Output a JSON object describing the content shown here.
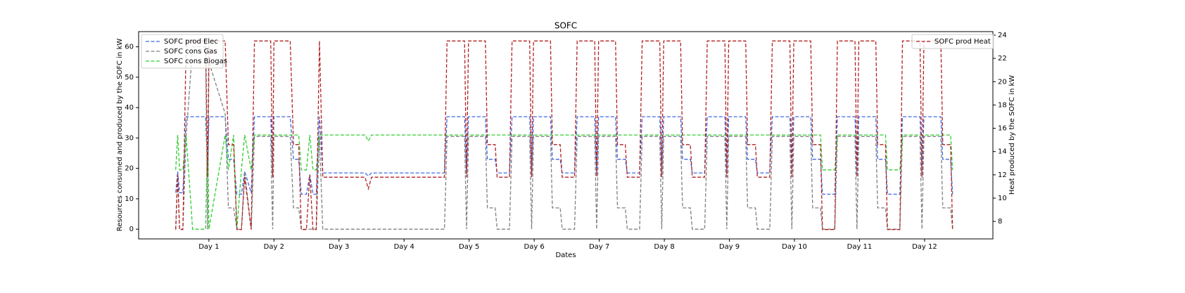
{
  "chart_data": {
    "type": "line",
    "title": "SOFC",
    "x_label": "Dates",
    "y_label": "Resources consumed and produced by the SOFC in kW",
    "y2_label": "Heat produced by the SOFC in kW",
    "xlim": [
      -0.08,
      13.05
    ],
    "ylim": [
      -3.2,
      65
    ],
    "y2lim": [
      6.5,
      24.3
    ],
    "xticks": [
      {
        "value": 1,
        "label": "Day 1"
      },
      {
        "value": 2,
        "label": "Day 2"
      },
      {
        "value": 3,
        "label": "Day 3"
      },
      {
        "value": 4,
        "label": "Day 4"
      },
      {
        "value": 5,
        "label": "Day 5"
      },
      {
        "value": 6,
        "label": "Day 6"
      },
      {
        "value": 7,
        "label": "Day 7"
      },
      {
        "value": 8,
        "label": "Day 8"
      },
      {
        "value": 9,
        "label": "Day 9"
      },
      {
        "value": 10,
        "label": "Day 10"
      },
      {
        "value": 11,
        "label": "Day 11"
      },
      {
        "value": 12,
        "label": "Day 12"
      }
    ],
    "yticks": [
      0,
      10,
      20,
      30,
      40,
      50,
      60
    ],
    "y2ticks": [
      8,
      10,
      12,
      14,
      16,
      18,
      20,
      22,
      24
    ],
    "legend": "upper left",
    "x": [
      0.49,
      0.52,
      0.55,
      0.6,
      0.65,
      0.75,
      0.95,
      0.98,
      1.0,
      1.25,
      1.3,
      1.38,
      1.43,
      1.5,
      1.55,
      1.65,
      1.7,
      1.95,
      1.98,
      2.0,
      2.25,
      2.3,
      2.38,
      2.42,
      2.5,
      2.55,
      2.6,
      2.65,
      2.7,
      2.75,
      2.8,
      3.4,
      3.45,
      3.5,
      4.62,
      4.66,
      4.93,
      4.96,
      4.99,
      5.25,
      5.28,
      5.4,
      5.43,
      5.62,
      5.66,
      5.93,
      5.96,
      5.99,
      6.25,
      6.28,
      6.4,
      6.43,
      6.62,
      6.66,
      6.93,
      6.96,
      6.99,
      7.25,
      7.28,
      7.4,
      7.43,
      7.62,
      7.66,
      7.93,
      7.96,
      7.99,
      8.25,
      8.28,
      8.4,
      8.43,
      8.62,
      8.66,
      8.93,
      8.96,
      8.99,
      9.25,
      9.28,
      9.4,
      9.43,
      9.62,
      9.66,
      9.93,
      9.96,
      9.99,
      10.25,
      10.28,
      10.4,
      10.43,
      10.62,
      10.66,
      10.93,
      10.96,
      10.99,
      11.25,
      11.28,
      11.4,
      11.43,
      11.62,
      11.66,
      11.93,
      11.96,
      11.99,
      12.25,
      12.28,
      12.4,
      12.43
    ],
    "series": [
      {
        "name": "SOFC prod Elec",
        "color": "#4169e1",
        "values": [
          12,
          19,
          12,
          12,
          37,
          37,
          37,
          18,
          37,
          37,
          23,
          23,
          11.5,
          11.5,
          19,
          12,
          37,
          37,
          18,
          37,
          37,
          23,
          23,
          11.5,
          11.5,
          18,
          11.5,
          11.5,
          37,
          18.5,
          18.5,
          18.5,
          17.5,
          18.5,
          18.5,
          37,
          37,
          18,
          37,
          37,
          23,
          23,
          18.5,
          18.5,
          37,
          37,
          18,
          37,
          37,
          23,
          23,
          18.5,
          18.5,
          37,
          37,
          18,
          37,
          37,
          23,
          23,
          18.5,
          18.5,
          37,
          37,
          18,
          37,
          37,
          23,
          23,
          18.5,
          18.5,
          37,
          37,
          18,
          37,
          37,
          23,
          23,
          18.5,
          18.5,
          37,
          37,
          18,
          37,
          37,
          23,
          23,
          11.5,
          11.5,
          37,
          37,
          18,
          37,
          37,
          23,
          23,
          11.5,
          11.5,
          37,
          37,
          18,
          37,
          37,
          23,
          23,
          11.5
        ]
      },
      {
        "name": "SOFC cons Gas",
        "color": "#808080",
        "values": [
          0,
          18,
          0,
          0,
          30.5,
          60,
          60,
          0,
          55,
          38,
          7,
          7,
          0,
          0,
          19,
          0,
          30.5,
          30.5,
          0,
          30.5,
          30.5,
          7,
          7,
          0,
          0,
          0,
          0,
          0,
          30.5,
          0,
          0,
          0,
          0,
          0,
          0,
          30.5,
          30.5,
          0,
          30.5,
          30.5,
          7,
          7,
          0,
          0,
          30.5,
          30.5,
          0,
          30.5,
          30.5,
          7,
          7,
          0,
          0,
          30.5,
          30.5,
          0,
          30.5,
          30.5,
          7,
          7,
          0,
          0,
          30.5,
          30.5,
          0,
          30.5,
          30.5,
          7,
          7,
          0,
          0,
          30.5,
          30.5,
          0,
          30.5,
          30.5,
          7,
          7,
          0,
          0,
          30.5,
          30.5,
          0,
          30.5,
          30.5,
          7,
          7,
          0,
          0,
          30.5,
          30.5,
          0,
          30.5,
          30.5,
          7,
          7,
          0,
          0,
          30.5,
          30.5,
          0,
          30.5,
          30.5,
          7,
          7,
          0
        ]
      },
      {
        "name": "SOFC cons Biogas",
        "color": "#32cd32",
        "values": [
          19.5,
          31,
          19.5,
          19.5,
          31,
          0,
          0,
          31,
          0,
          31,
          19.5,
          31,
          0,
          19.5,
          31,
          19.5,
          31,
          31,
          31,
          31,
          31,
          31,
          31,
          19.5,
          19.5,
          31,
          19.5,
          19.5,
          31,
          31,
          31,
          31,
          29,
          31,
          31,
          31,
          31,
          31,
          31,
          31,
          31,
          31,
          31,
          31,
          31,
          31,
          31,
          31,
          31,
          31,
          31,
          31,
          31,
          31,
          31,
          31,
          31,
          31,
          31,
          31,
          31,
          31,
          31,
          31,
          31,
          31,
          31,
          31,
          31,
          31,
          31,
          31,
          31,
          31,
          31,
          31,
          31,
          31,
          31,
          31,
          31,
          31,
          31,
          31,
          31,
          31,
          31,
          19.5,
          19.5,
          31,
          31,
          31,
          31,
          31,
          31,
          31,
          19.5,
          19.5,
          31,
          31,
          31,
          31,
          31,
          31,
          31,
          19.5
        ]
      },
      {
        "name": "SOFC prod Heat",
        "color": "#b22222",
        "axis": "y2",
        "values": [
          7.3,
          12,
          7.3,
          7.3,
          23.5,
          23.5,
          23.5,
          11.8,
          23.5,
          23.5,
          14.6,
          14.6,
          7.3,
          7.3,
          11.8,
          7.3,
          23.5,
          23.5,
          11.8,
          23.5,
          23.5,
          14.6,
          14.6,
          7.3,
          7.3,
          12,
          7.3,
          7.3,
          23.5,
          11.8,
          11.8,
          11.8,
          10.8,
          11.8,
          11.8,
          23.5,
          23.5,
          11.8,
          23.5,
          23.5,
          14.6,
          14.6,
          11.8,
          11.8,
          23.5,
          23.5,
          11.8,
          23.5,
          23.5,
          14.6,
          14.6,
          11.8,
          11.8,
          23.5,
          23.5,
          11.8,
          23.5,
          23.5,
          14.6,
          14.6,
          11.8,
          11.8,
          23.5,
          23.5,
          11.8,
          23.5,
          23.5,
          14.6,
          14.6,
          11.8,
          11.8,
          23.5,
          23.5,
          11.8,
          23.5,
          23.5,
          14.6,
          14.6,
          11.8,
          11.8,
          23.5,
          23.5,
          11.8,
          23.5,
          23.5,
          14.6,
          14.6,
          7.3,
          7.3,
          23.5,
          23.5,
          11.8,
          23.5,
          23.5,
          14.6,
          14.6,
          7.3,
          7.3,
          23.5,
          23.5,
          11.8,
          23.5,
          23.5,
          14.6,
          14.6,
          7.3
        ]
      }
    ]
  }
}
